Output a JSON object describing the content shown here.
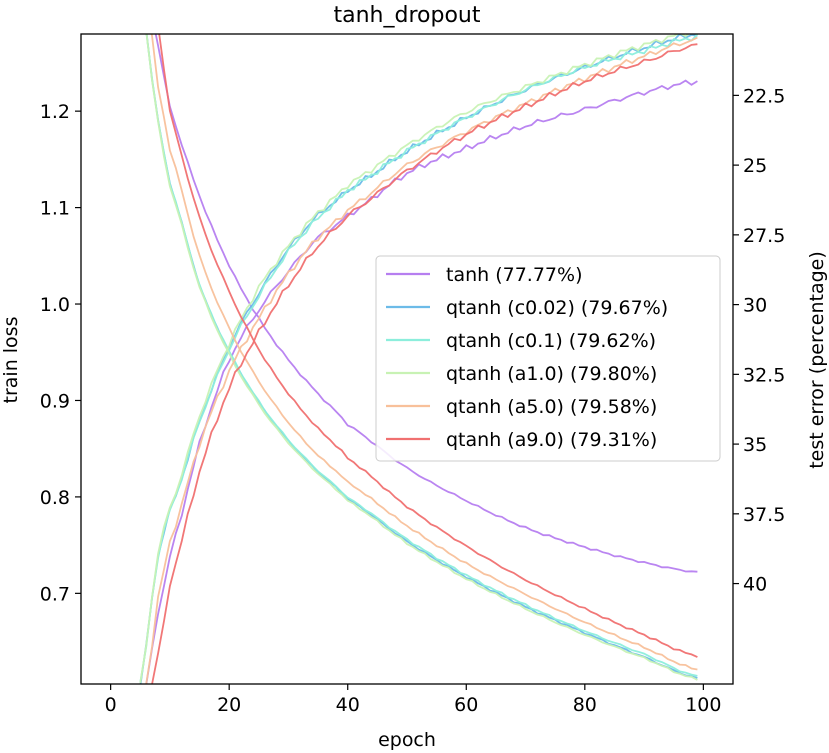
{
  "chart_data": {
    "type": "line",
    "title": "tanh_dropout",
    "xlabel": "epoch",
    "ylabel_left": "train loss",
    "ylabel_right": "test error (percentage)",
    "xlim": [
      -5,
      105
    ],
    "ylim_left": [
      0.606,
      1.28
    ],
    "ylim_right": [
      20.3,
      43.6
    ],
    "right_axis_inverted": true,
    "xticks": [
      "0",
      "20",
      "40",
      "60",
      "80",
      "100"
    ],
    "yticks_left": [
      "0.7",
      "0.8",
      "0.9",
      "1.0",
      "1.1",
      "1.2"
    ],
    "yticks_right": [
      "22.5",
      "25",
      "27.5",
      "30",
      "32.5",
      "35",
      "37.5",
      "40"
    ],
    "grid": false,
    "legend_position": "center-right",
    "series": [
      {
        "name": "tanh (77.77%)",
        "color": "#b67ef0",
        "train_loss": {
          "epochs": [
            6,
            10,
            15,
            20,
            25,
            30,
            35,
            40,
            50,
            60,
            70,
            80,
            90,
            99
          ],
          "values": [
            1.32,
            1.205,
            1.112,
            1.04,
            0.985,
            0.942,
            0.907,
            0.875,
            0.83,
            0.796,
            0.768,
            0.748,
            0.732,
            0.722
          ]
        },
        "test_error": {
          "epochs": [
            6,
            8,
            10,
            15,
            20,
            25,
            30,
            35,
            40,
            50,
            60,
            70,
            80,
            90,
            99
          ],
          "values": [
            43.6,
            41.0,
            39.0,
            35.0,
            32.0,
            30.2,
            28.8,
            27.6,
            26.8,
            25.3,
            24.4,
            23.6,
            23.0,
            22.4,
            22.0
          ]
        }
      },
      {
        "name": "qtanh (c0.02) (79.67%)",
        "color": "#6cbbe8",
        "train_loss": {
          "epochs": [
            5,
            8,
            10,
            15,
            20,
            25,
            30,
            35,
            40,
            50,
            60,
            70,
            80,
            90,
            99
          ],
          "values": [
            1.32,
            1.19,
            1.125,
            1.02,
            0.95,
            0.898,
            0.858,
            0.826,
            0.798,
            0.754,
            0.717,
            0.686,
            0.659,
            0.634,
            0.612
          ]
        },
        "test_error": {
          "epochs": [
            5,
            8,
            10,
            15,
            20,
            25,
            30,
            35,
            40,
            50,
            60,
            70,
            80,
            90,
            99
          ],
          "values": [
            43.6,
            39.0,
            37.4,
            34.2,
            31.5,
            29.6,
            28.0,
            26.8,
            25.9,
            24.5,
            23.3,
            22.3,
            21.5,
            20.8,
            20.3
          ]
        }
      },
      {
        "name": "qtanh (c0.1) (79.62%)",
        "color": "#8ceedc",
        "train_loss": {
          "epochs": [
            5,
            8,
            10,
            15,
            20,
            25,
            30,
            35,
            40,
            50,
            60,
            70,
            80,
            90,
            99
          ],
          "values": [
            1.32,
            1.19,
            1.125,
            1.02,
            0.951,
            0.899,
            0.859,
            0.827,
            0.799,
            0.756,
            0.719,
            0.688,
            0.661,
            0.637,
            0.614
          ]
        },
        "test_error": {
          "epochs": [
            5,
            8,
            10,
            15,
            20,
            25,
            30,
            35,
            40,
            50,
            60,
            70,
            80,
            90,
            99
          ],
          "values": [
            43.6,
            39.0,
            37.4,
            34.2,
            31.6,
            29.7,
            28.1,
            26.9,
            25.9,
            24.5,
            23.3,
            22.3,
            21.5,
            20.9,
            20.4
          ]
        }
      },
      {
        "name": "qtanh (a1.0) (79.80%)",
        "color": "#c8f2b4",
        "train_loss": {
          "epochs": [
            5,
            8,
            10,
            15,
            20,
            25,
            30,
            35,
            40,
            50,
            60,
            70,
            80,
            90,
            99
          ],
          "values": [
            1.32,
            1.188,
            1.122,
            1.018,
            0.948,
            0.896,
            0.856,
            0.824,
            0.796,
            0.752,
            0.715,
            0.684,
            0.657,
            0.633,
            0.611
          ]
        },
        "test_error": {
          "epochs": [
            5,
            8,
            10,
            15,
            20,
            25,
            30,
            35,
            40,
            50,
            60,
            70,
            80,
            90,
            99
          ],
          "values": [
            43.6,
            38.9,
            37.3,
            34.0,
            31.4,
            29.4,
            27.9,
            26.7,
            25.7,
            24.3,
            23.1,
            22.2,
            21.4,
            20.7,
            20.2
          ]
        }
      },
      {
        "name": "qtanh (a5.0) (79.58%)",
        "color": "#f8c09a",
        "train_loss": {
          "epochs": [
            6,
            8,
            10,
            15,
            20,
            25,
            30,
            35,
            40,
            50,
            60,
            70,
            80,
            90,
            99
          ],
          "values": [
            1.32,
            1.225,
            1.16,
            1.05,
            0.975,
            0.92,
            0.877,
            0.843,
            0.815,
            0.77,
            0.731,
            0.699,
            0.67,
            0.644,
            0.621
          ]
        },
        "test_error": {
          "epochs": [
            6,
            8,
            10,
            15,
            20,
            25,
            30,
            35,
            40,
            50,
            60,
            70,
            80,
            90,
            99
          ],
          "values": [
            43.6,
            40.5,
            38.5,
            35.0,
            32.4,
            30.5,
            28.9,
            27.6,
            26.6,
            25.0,
            23.8,
            22.8,
            21.9,
            21.1,
            20.5
          ]
        }
      },
      {
        "name": "qtanh (a9.0) (79.31%)",
        "color": "#f07070",
        "train_loss": {
          "epochs": [
            7,
            10,
            15,
            20,
            25,
            30,
            35,
            40,
            50,
            60,
            70,
            80,
            90,
            99
          ],
          "values": [
            1.32,
            1.2,
            1.09,
            1.013,
            0.953,
            0.907,
            0.871,
            0.84,
            0.79,
            0.749,
            0.714,
            0.684,
            0.657,
            0.635
          ]
        },
        "test_error": {
          "epochs": [
            7,
            8,
            10,
            15,
            20,
            25,
            30,
            35,
            40,
            50,
            60,
            70,
            80,
            90,
            99
          ],
          "values": [
            43.6,
            42.5,
            40.0,
            36.0,
            33.0,
            31.0,
            29.3,
            27.9,
            26.8,
            25.2,
            23.9,
            22.9,
            22.0,
            21.3,
            20.7
          ]
        }
      }
    ]
  }
}
